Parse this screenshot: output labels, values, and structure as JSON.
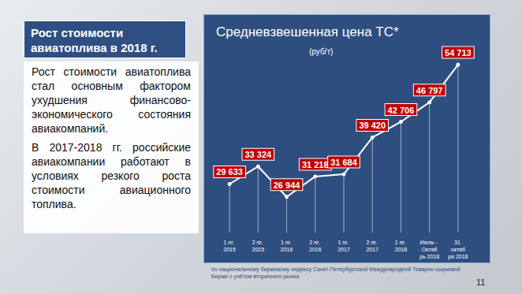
{
  "slide": {
    "heading": "Рост стоимости авиатоплива в 2018 г.",
    "paragraphs": [
      "Рост стоимости авиатоплива стал основным фактором ухудшения финансово-экономического состояния авиакомпаний.",
      "В 2017-2018 гг. российские авиакомпании работают в условиях резкого роста стоимости авиационного топлива."
    ],
    "footnote": "по национальному биржевому индексу Санкт-Петербургской Международной Товарно-сырьевой Биржи с учётом вторичного рынка",
    "page": "11"
  },
  "chart_data": {
    "type": "line",
    "title": "Средневзвешенная цена ТС*",
    "subtitle": "(руб/т)",
    "categories": [
      "1 пг. 2015",
      "2 пг. 2015",
      "1 пг. 2016",
      "2 пг. 2016",
      "1 пг. 2017",
      "2 пг. 2017",
      "1 пг. 2018",
      "Июль - Октябрь 2018",
      "31 октября 2018"
    ],
    "values": [
      29633,
      33324,
      26944,
      31218,
      31684,
      39420,
      42706,
      46797,
      54713
    ],
    "value_labels": [
      "29 633",
      "33 324",
      "26 944",
      "31 218",
      "31 684",
      "39 420",
      "42 706",
      "46 797",
      "54 713"
    ],
    "color": "#ffffff",
    "marker": "circle",
    "data_labels": true,
    "tick_labels": "x",
    "grid": false
  }
}
